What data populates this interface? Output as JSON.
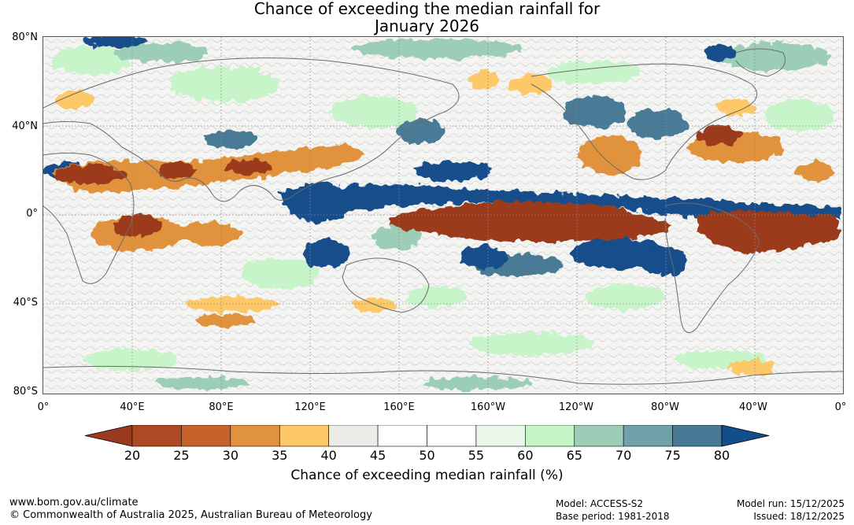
{
  "title": {
    "line1": "Chance of exceeding the median rainfall for",
    "line2": "January 2026"
  },
  "map": {
    "lat_labels": [
      "80°N",
      "40°N",
      "0°",
      "40°S",
      "80°S"
    ],
    "lon_labels": [
      "0°",
      "40°E",
      "80°E",
      "120°E",
      "160°E",
      "160°W",
      "120°W",
      "80°W",
      "40°W",
      "0°"
    ]
  },
  "colorbar": {
    "ticks": [
      "20",
      "25",
      "30",
      "35",
      "40",
      "45",
      "50",
      "55",
      "60",
      "65",
      "70",
      "75",
      "80"
    ],
    "colors": {
      "under": "#9b3a1f",
      "bins": [
        "#ad4a24",
        "#c8622c",
        "#e0923e",
        "#fcc868",
        "#ebebe7",
        "#ffffff",
        "#ffffff",
        "#eaf6ea",
        "#c6f6c8",
        "#9ccdb6",
        "#6fa3a9",
        "#487a96"
      ],
      "over": "#124e8a"
    },
    "label": "Chance of exceeding median rainfall (%)"
  },
  "footer": {
    "website": "www.bom.gov.au/climate",
    "copyright": "© Commonwealth of Australia 2025, Australian Bureau of Meteorology",
    "model": "Model: ACCESS-S2",
    "base_period": "Base period: 1981-2018",
    "model_run": "Model run: 15/12/2025",
    "issued": "Issued: 18/12/2025"
  }
}
